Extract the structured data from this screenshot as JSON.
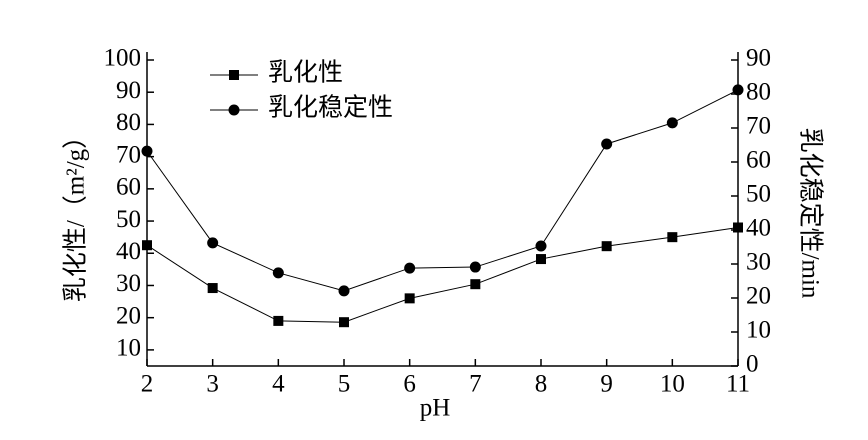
{
  "chart_data": {
    "type": "line",
    "x_label": "pH",
    "y_label": "乳化性/（m²/g）",
    "y2_label": "乳化稳定性/min",
    "x": [
      2,
      3,
      4,
      5,
      6,
      7,
      8,
      9,
      10,
      11
    ],
    "xlim": [
      2,
      11
    ],
    "xticks": [
      2,
      3,
      4,
      5,
      6,
      7,
      8,
      9,
      10,
      11
    ],
    "ylim": [
      5,
      100
    ],
    "yticks": [
      10,
      20,
      30,
      40,
      50,
      60,
      70,
      80,
      90,
      100
    ],
    "y2lim": [
      0,
      90
    ],
    "y2ticks": [
      0,
      10,
      20,
      30,
      40,
      50,
      60,
      70,
      80,
      90
    ],
    "legend": "upper left",
    "series": [
      {
        "name": "乳化性",
        "color": "#000000",
        "marker": "square",
        "values": [
          42.5,
          29.2,
          19,
          18.6,
          26,
          30.4,
          38.2,
          42.2,
          45,
          48
        ]
      },
      {
        "name": "乳化稳定性",
        "color": "#000000",
        "marker": "circle",
        "axis": "y2",
        "values": [
          63.2,
          36.2,
          27.4,
          22.1,
          28.8,
          29.1,
          35.3,
          65.3,
          71.5,
          81.2
        ]
      }
    ]
  }
}
